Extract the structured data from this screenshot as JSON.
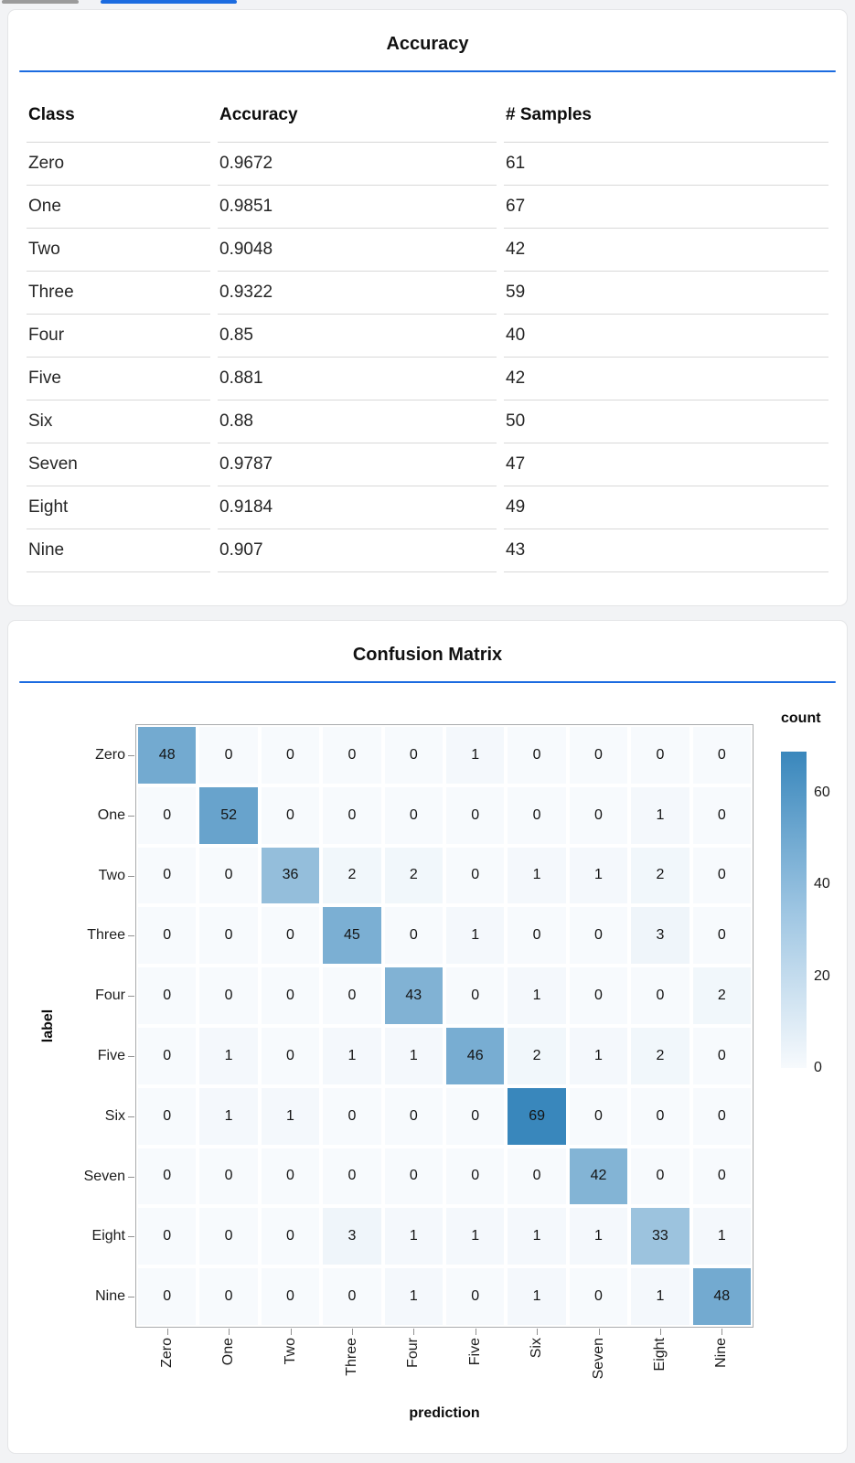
{
  "top_bar": {
    "indicator_gray_color": "#9b9b9b",
    "indicator_blue_color": "#1b6be0"
  },
  "accuracy_card": {
    "title": "Accuracy",
    "columns": [
      "Class",
      "Accuracy",
      "# Samples"
    ],
    "rows": [
      [
        "Zero",
        "0.9672",
        "61"
      ],
      [
        "One",
        "0.9851",
        "67"
      ],
      [
        "Two",
        "0.9048",
        "42"
      ],
      [
        "Three",
        "0.9322",
        "59"
      ],
      [
        "Four",
        "0.85",
        "40"
      ],
      [
        "Five",
        "0.881",
        "42"
      ],
      [
        "Six",
        "0.88",
        "50"
      ],
      [
        "Seven",
        "0.9787",
        "47"
      ],
      [
        "Eight",
        "0.9184",
        "49"
      ],
      [
        "Nine",
        "0.907",
        "43"
      ]
    ]
  },
  "confusion_card": {
    "title": "Confusion Matrix"
  },
  "chart_data": {
    "type": "heatmap",
    "title": "Confusion Matrix",
    "xlabel": "prediction",
    "ylabel": "label",
    "categories": [
      "Zero",
      "One",
      "Two",
      "Three",
      "Four",
      "Five",
      "Six",
      "Seven",
      "Eight",
      "Nine"
    ],
    "matrix": [
      [
        48,
        0,
        0,
        0,
        0,
        1,
        0,
        0,
        0,
        0
      ],
      [
        0,
        52,
        0,
        0,
        0,
        0,
        0,
        0,
        1,
        0
      ],
      [
        0,
        0,
        36,
        2,
        2,
        0,
        1,
        1,
        2,
        0
      ],
      [
        0,
        0,
        0,
        45,
        0,
        1,
        0,
        0,
        3,
        0
      ],
      [
        0,
        0,
        0,
        0,
        43,
        0,
        1,
        0,
        0,
        2
      ],
      [
        0,
        1,
        0,
        1,
        1,
        46,
        2,
        1,
        2,
        0
      ],
      [
        0,
        1,
        1,
        0,
        0,
        0,
        69,
        0,
        0,
        0
      ],
      [
        0,
        0,
        0,
        0,
        0,
        0,
        0,
        42,
        0,
        0
      ],
      [
        0,
        0,
        0,
        3,
        1,
        1,
        1,
        1,
        33,
        1
      ],
      [
        0,
        0,
        0,
        0,
        1,
        0,
        1,
        0,
        1,
        48
      ]
    ],
    "legend": {
      "title": "count",
      "ticks": [
        60,
        40,
        20,
        0
      ],
      "domain": [
        0,
        69
      ]
    },
    "colors": {
      "low": "#f7fafd",
      "high": "#3987bc"
    },
    "grid": false,
    "legend_position": "right"
  }
}
